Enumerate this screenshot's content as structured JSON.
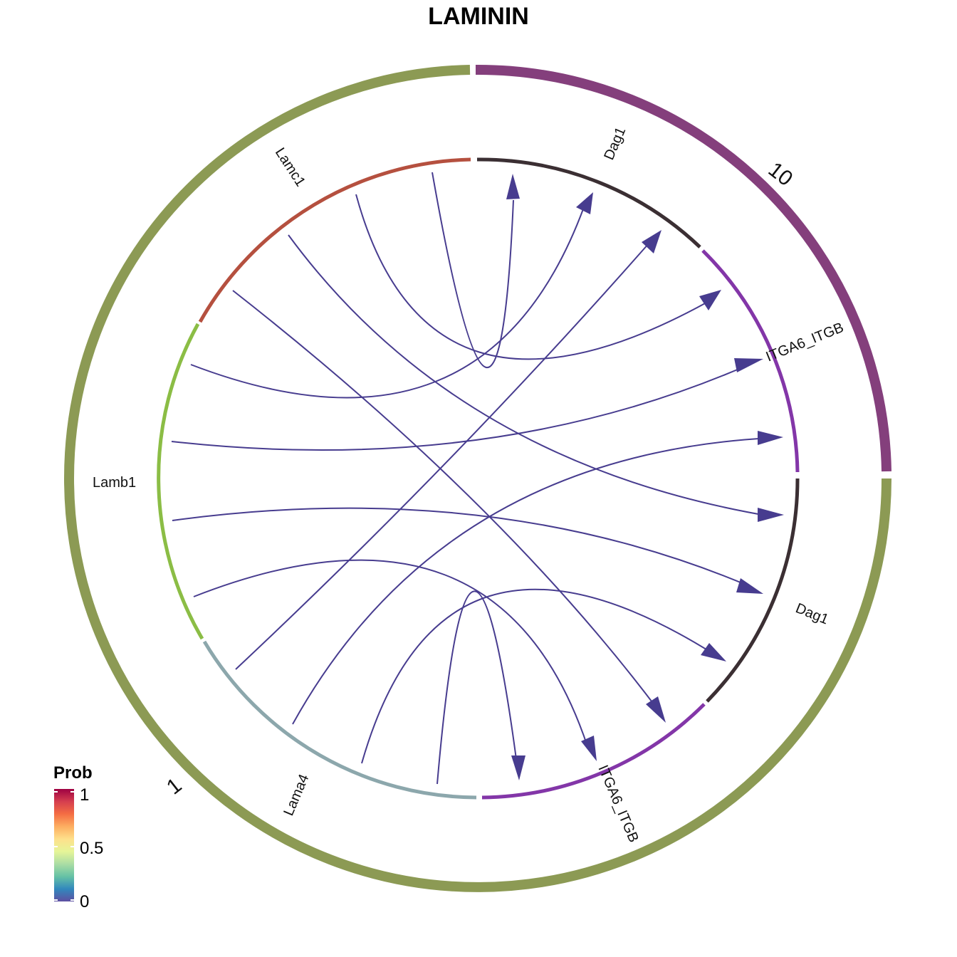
{
  "title": "LAMININ",
  "colors": {
    "group_1": "#8c9a54",
    "group_10": "#843f7c",
    "link": "#473c8f",
    "arrow": "#473c8f",
    "lamc1": "#b5503f",
    "lamb1": "#8bbd45",
    "lama4": "#8ca7ac",
    "dag1": "#3b2f33",
    "itga6": "#8336a8"
  },
  "groups": [
    {
      "id": "group-1",
      "label": "1",
      "color": "#8c9a54"
    },
    {
      "id": "group-10",
      "label": "10",
      "color": "#843f7c"
    }
  ],
  "segments": [
    {
      "id": "lamc1",
      "label": "Lamc1",
      "color": "#b5503f"
    },
    {
      "id": "lamb1",
      "label": "Lamb1",
      "color": "#8bbd45"
    },
    {
      "id": "lama4",
      "label": "Lama4",
      "color": "#8ca7ac"
    },
    {
      "id": "itga6-bottom",
      "label": "ITGA6_ITGB",
      "color": "#8336a8"
    },
    {
      "id": "dag1-right",
      "label": "Dag1",
      "color": "#3b2f33"
    },
    {
      "id": "itga6-right",
      "label": "ITGA6_ITGB",
      "color": "#8336a8"
    },
    {
      "id": "dag1-top",
      "label": "Dag1",
      "color": "#3b2f33"
    }
  ],
  "links": [
    {
      "from": "Lamc1",
      "to": "Dag1 (10)"
    },
    {
      "from": "Lamc1",
      "to": "ITGA6_ITGB (10)"
    },
    {
      "from": "Lamc1",
      "to": "Dag1 (1)"
    },
    {
      "from": "Lamc1",
      "to": "ITGA6_ITGB (1)"
    },
    {
      "from": "Lamb1",
      "to": "Dag1 (10)"
    },
    {
      "from": "Lamb1",
      "to": "ITGA6_ITGB (10)"
    },
    {
      "from": "Lamb1",
      "to": "Dag1 (1)"
    },
    {
      "from": "Lamb1",
      "to": "ITGA6_ITGB (1)"
    },
    {
      "from": "Lama4",
      "to": "Dag1 (10)"
    },
    {
      "from": "Lama4",
      "to": "ITGA6_ITGB (10)"
    },
    {
      "from": "Lama4",
      "to": "Dag1 (1)"
    },
    {
      "from": "Lama4",
      "to": "ITGA6_ITGB (1)"
    }
  ],
  "legend": {
    "title": "Prob",
    "ticks": [
      "1",
      "0.5",
      "0"
    ],
    "gradient": [
      "#5e4fa2",
      "#3288bd",
      "#66c2a5",
      "#abdda4",
      "#e6f598",
      "#fee08b",
      "#fdae61",
      "#f46d43",
      "#d53e4f",
      "#9e0142"
    ]
  }
}
